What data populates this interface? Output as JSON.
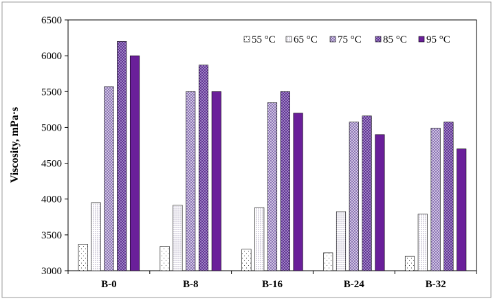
{
  "chart_data": {
    "type": "bar",
    "title": "",
    "xlabel": "",
    "ylabel": "Viscosity, mPa·s",
    "ylim": [
      3000,
      6500
    ],
    "yticks": [
      3000,
      3500,
      4000,
      4500,
      5000,
      5500,
      6000,
      6500
    ],
    "ytick_labels": [
      "3000",
      "3500",
      "4000",
      "4500",
      "5000",
      "5500",
      "6000",
      "6500"
    ],
    "grid": false,
    "legend_position": "top-right",
    "categories": [
      "B-0",
      "B-8",
      "B-16",
      "B-24",
      "B-32"
    ],
    "series": [
      {
        "name": "55 °C",
        "values": [
          3370,
          3340,
          3300,
          3250,
          3200
        ],
        "color": "#ffffff",
        "pattern": "sparse-dots"
      },
      {
        "name": "65 °C",
        "values": [
          3950,
          3915,
          3880,
          3825,
          3790
        ],
        "color": "#ffffff",
        "pattern": "dense-dots"
      },
      {
        "name": "75 °C",
        "values": [
          5570,
          5500,
          5345,
          5075,
          4990
        ],
        "color": "#b9a8d4",
        "pattern": "light-check"
      },
      {
        "name": "85 °C",
        "values": [
          6200,
          5870,
          5500,
          5160,
          5075
        ],
        "color": "#8f6fc0",
        "pattern": "dark-check"
      },
      {
        "name": "95 °C",
        "values": [
          6000,
          5500,
          5200,
          4900,
          4700
        ],
        "color": "#6a1f9a",
        "pattern": "solid"
      }
    ]
  }
}
